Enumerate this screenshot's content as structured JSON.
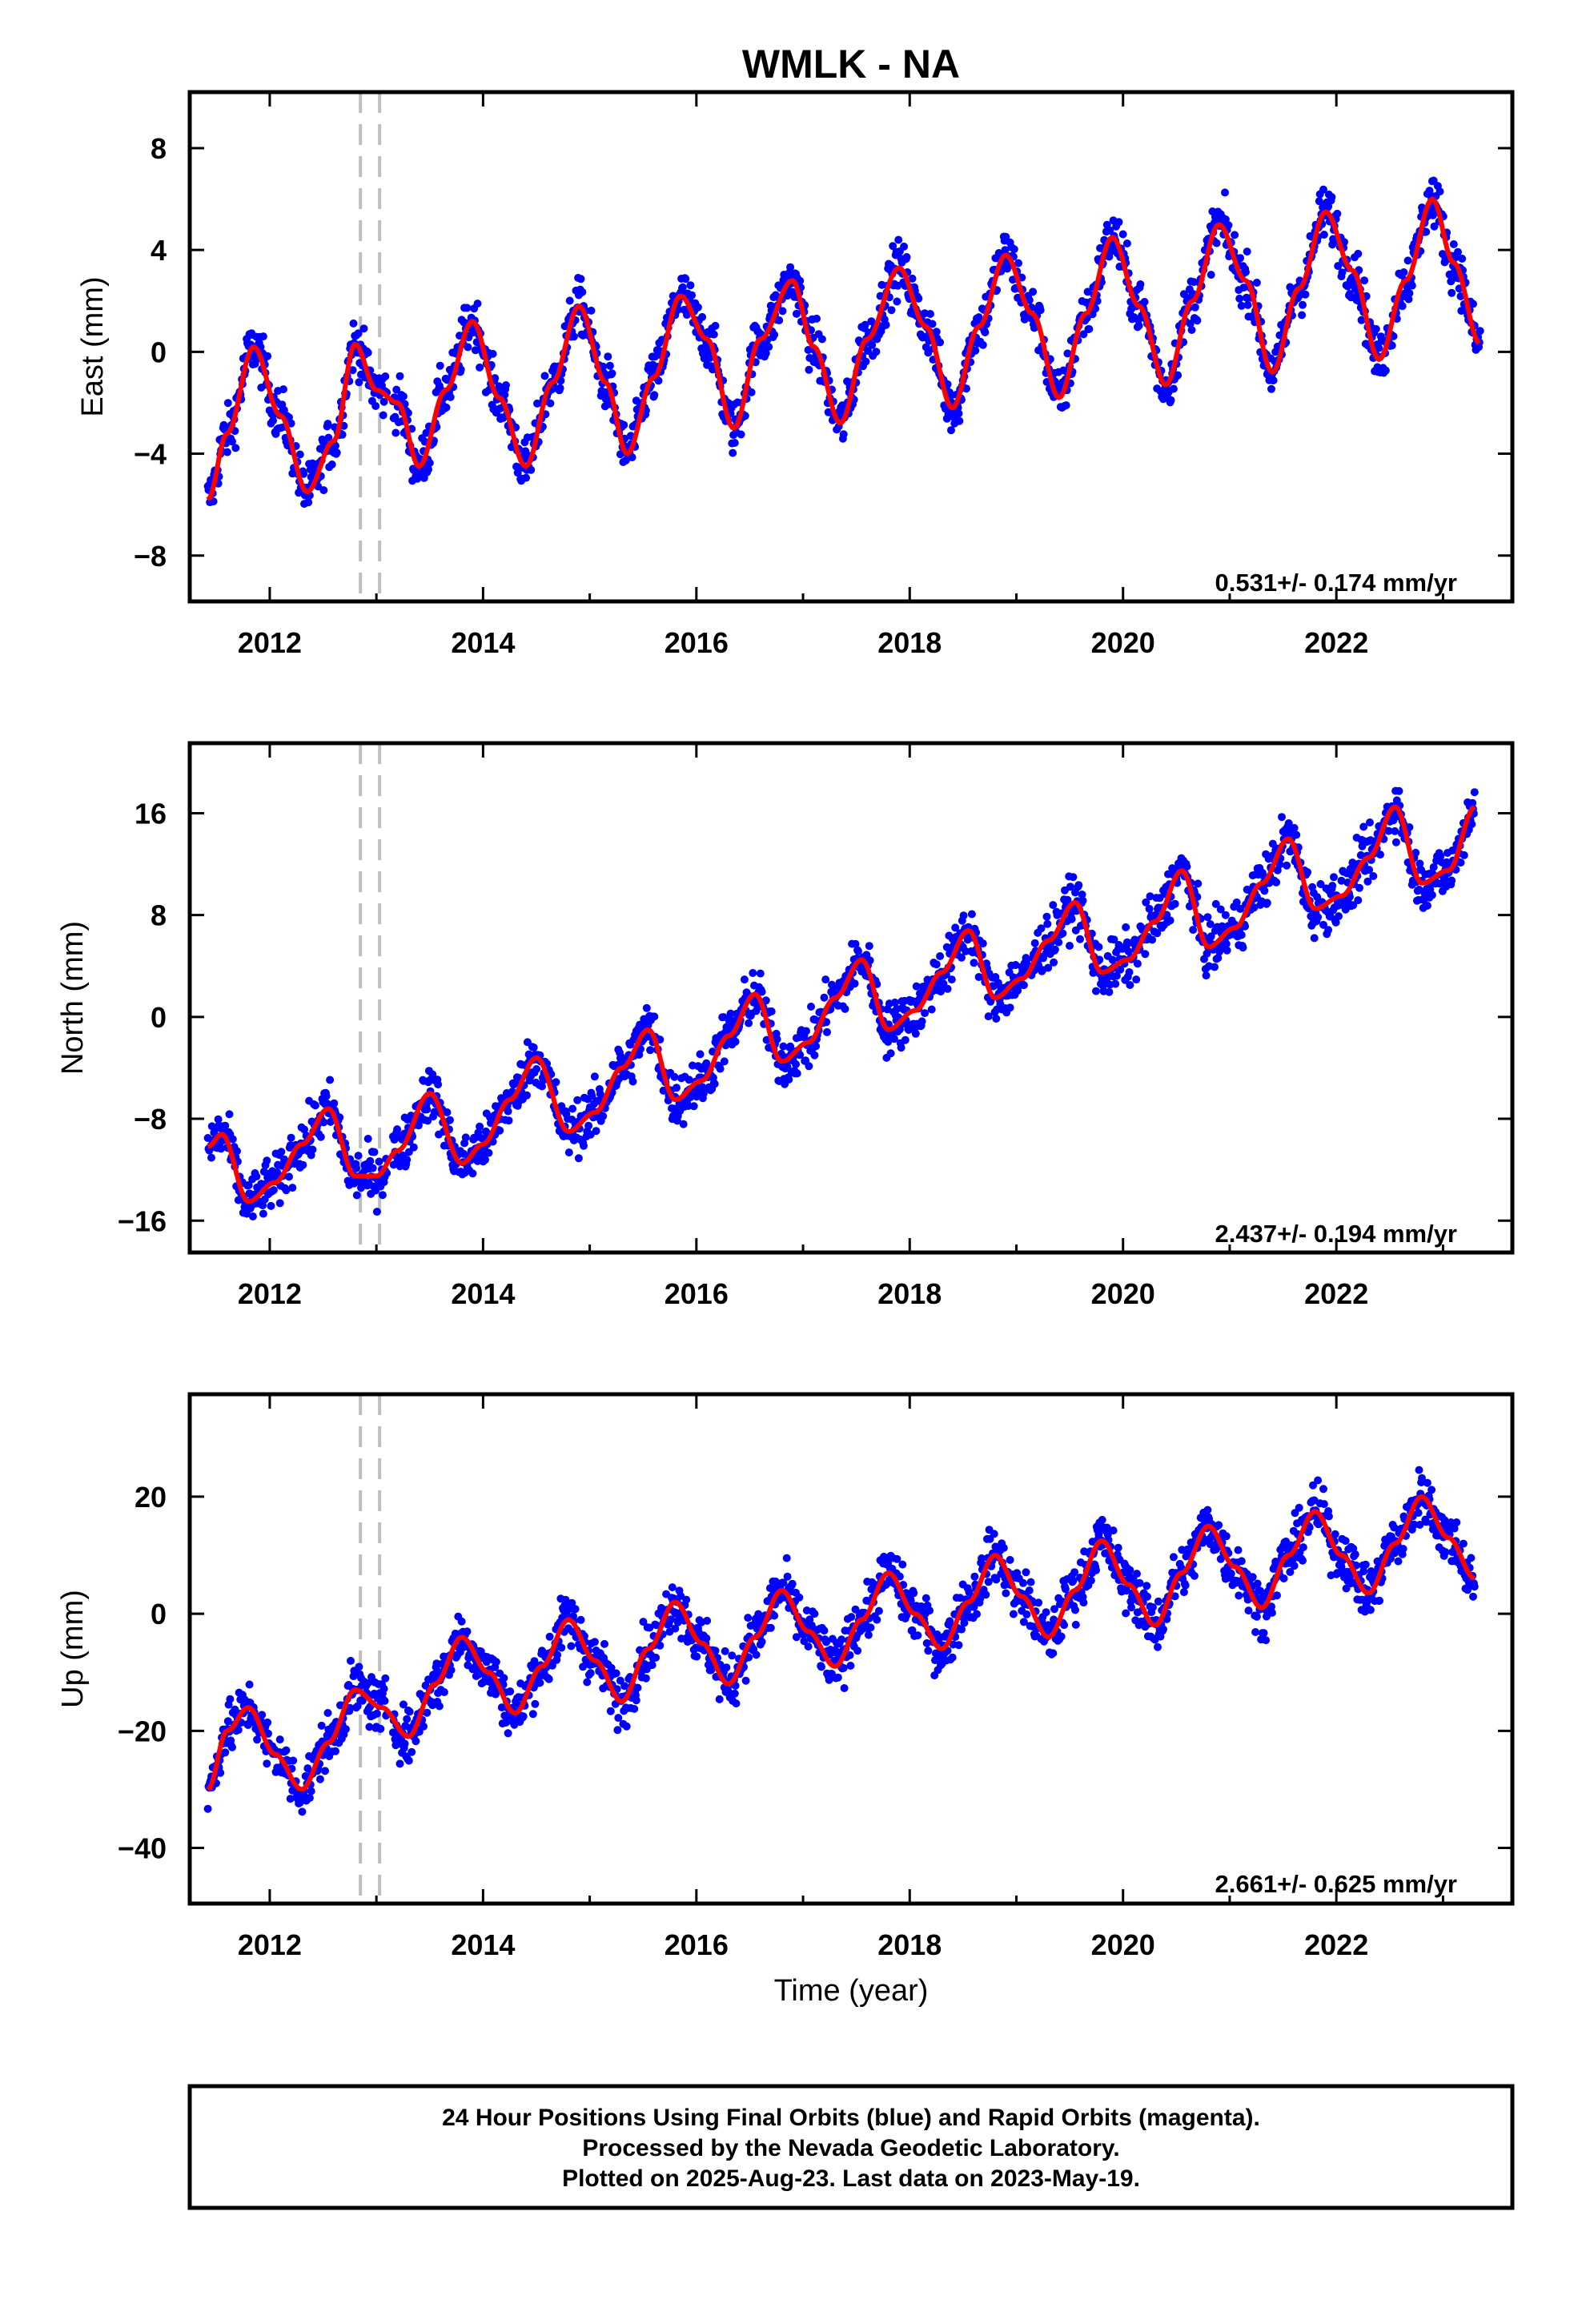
{
  "title": "WMLK - NA",
  "colors": {
    "data": "#0000ff",
    "model": "#ff0000",
    "breaks": "#bfbfbf",
    "frame": "#000000"
  },
  "xlabel": "Time (year)",
  "xticks": [
    2012,
    2014,
    2016,
    2018,
    2020,
    2022
  ],
  "breaks": [
    2012.85,
    2013.03
  ],
  "chart_data": [
    {
      "type": "scatter",
      "component": "east",
      "ylabel": "East (mm)",
      "xlim": [
        2011.25,
        2023.65
      ],
      "ylim": [
        -9.8,
        10.2
      ],
      "yticks": [
        -8,
        -4,
        0,
        4,
        8
      ],
      "rate": "0.531+/- 0.174 mm/yr",
      "series": [
        {
          "role": "daily positions",
          "x": [
            2011.42,
            2011.6,
            2011.85,
            2012.1,
            2012.35,
            2012.6,
            2012.8,
            2013.0,
            2013.2,
            2013.4,
            2013.65,
            2013.9,
            2014.15,
            2014.4,
            2014.65,
            2014.9,
            2015.15,
            2015.35,
            2015.6,
            2015.85,
            2016.1,
            2016.35,
            2016.6,
            2016.9,
            2017.1,
            2017.35,
            2017.6,
            2017.9,
            2018.15,
            2018.4,
            2018.65,
            2018.9,
            2019.15,
            2019.4,
            2019.65,
            2019.9,
            2020.15,
            2020.4,
            2020.65,
            2020.9,
            2021.15,
            2021.4,
            2021.65,
            2021.9,
            2022.15,
            2022.4,
            2022.65,
            2022.9,
            2023.1,
            2023.35
          ],
          "y": [
            -5.8,
            -3.2,
            0.2,
            -2.5,
            -5.5,
            -3.5,
            0.3,
            -1.5,
            -2.0,
            -4.5,
            -1.5,
            1.2,
            -1.8,
            -4.5,
            -1.2,
            1.8,
            -1.2,
            -4.0,
            -1.0,
            2.2,
            0.5,
            -3.0,
            0.5,
            2.8,
            0.2,
            -2.8,
            0.5,
            3.3,
            1.0,
            -2.2,
            1.0,
            3.8,
            1.5,
            -1.8,
            1.5,
            4.5,
            1.8,
            -1.3,
            2.0,
            5.0,
            2.8,
            -0.8,
            2.5,
            5.5,
            3.2,
            -0.3,
            2.8,
            6.0,
            3.5,
            0.3
          ]
        },
        {
          "role": "seasonal + trend model",
          "samples_per_year": 48
        }
      ]
    },
    {
      "type": "scatter",
      "component": "north",
      "ylabel": "North (mm)",
      "xlim": [
        2011.25,
        2023.65
      ],
      "ylim": [
        -18.5,
        21.5
      ],
      "yticks": [
        -16,
        -8,
        0,
        8,
        16
      ],
      "rate": "2.437+/- 0.194 mm/yr",
      "series": [
        {
          "role": "daily positions",
          "x": [
            2011.42,
            2011.55,
            2011.8,
            2012.05,
            2012.3,
            2012.55,
            2012.8,
            2013.0,
            2013.2,
            2013.5,
            2013.8,
            2014.0,
            2014.25,
            2014.5,
            2014.8,
            2015.05,
            2015.3,
            2015.55,
            2015.8,
            2016.05,
            2016.3,
            2016.55,
            2016.8,
            2017.05,
            2017.3,
            2017.55,
            2017.8,
            2018.05,
            2018.3,
            2018.55,
            2018.8,
            2019.05,
            2019.3,
            2019.55,
            2019.8,
            2020.05,
            2020.3,
            2020.55,
            2020.8,
            2021.05,
            2021.3,
            2021.55,
            2021.8,
            2022.05,
            2022.3,
            2022.55,
            2022.8,
            2023.05,
            2023.3
          ],
          "y": [
            -10.2,
            -9.2,
            -14.5,
            -13.0,
            -10.0,
            -7.2,
            -12.5,
            -12.5,
            -10.5,
            -6.0,
            -11.5,
            -10.0,
            -6.5,
            -3.2,
            -9.0,
            -7.5,
            -4.0,
            -1.0,
            -6.5,
            -5.0,
            -1.5,
            1.8,
            -3.5,
            -2.0,
            1.5,
            4.5,
            -1.0,
            0.5,
            3.5,
            6.8,
            1.5,
            3.0,
            6.0,
            9.0,
            3.5,
            4.5,
            7.5,
            11.5,
            5.5,
            7.0,
            10.5,
            14.0,
            8.5,
            9.5,
            12.5,
            16.5,
            10.5,
            11.5,
            16.5
          ]
        },
        {
          "role": "seasonal + trend model",
          "samples_per_year": 48
        }
      ]
    },
    {
      "type": "scatter",
      "component": "up",
      "ylabel": "Up (mm)",
      "xlim": [
        2011.25,
        2023.65
      ],
      "ylim": [
        -49.5,
        37.5
      ],
      "yticks": [
        -40,
        -20,
        0,
        20
      ],
      "rate": "2.661+/- 0.625 mm/yr",
      "series": [
        {
          "role": "daily positions",
          "x": [
            2011.42,
            2011.6,
            2011.8,
            2012.05,
            2012.3,
            2012.55,
            2012.8,
            2013.05,
            2013.3,
            2013.55,
            2013.8,
            2014.05,
            2014.3,
            2014.55,
            2014.8,
            2015.05,
            2015.3,
            2015.55,
            2015.8,
            2016.05,
            2016.3,
            2016.55,
            2016.8,
            2017.05,
            2017.3,
            2017.55,
            2017.8,
            2018.05,
            2018.3,
            2018.55,
            2018.8,
            2019.05,
            2019.3,
            2019.55,
            2019.8,
            2020.05,
            2020.3,
            2020.55,
            2020.8,
            2021.05,
            2021.3,
            2021.55,
            2021.8,
            2022.05,
            2022.3,
            2022.55,
            2022.8,
            2023.05,
            2023.3
          ],
          "y": [
            -30.0,
            -20.0,
            -16.0,
            -24.0,
            -30.0,
            -22.0,
            -13.0,
            -16.0,
            -21.0,
            -12.0,
            -4.0,
            -10.0,
            -17.0,
            -9.0,
            -1.0,
            -8.0,
            -15.0,
            -6.0,
            2.0,
            -5.0,
            -12.0,
            -4.0,
            4.0,
            -3.0,
            -9.0,
            -1.0,
            7.0,
            0.0,
            -6.0,
            2.0,
            10.0,
            3.0,
            -4.0,
            4.0,
            12.5,
            5.0,
            -2.0,
            7.0,
            15.0,
            8.0,
            1.0,
            10.0,
            17.5,
            10.0,
            3.5,
            12.0,
            20.0,
            13.0,
            6.0
          ]
        },
        {
          "role": "seasonal + trend model",
          "samples_per_year": 48
        }
      ]
    }
  ],
  "footer": {
    "line1": "24 Hour Positions Using Final Orbits (blue) and Rapid Orbits (magenta).",
    "line2": "Processed by the Nevada Geodetic Laboratory.",
    "line3": "Plotted on 2025-Aug-23. Last data on 2023-May-19."
  }
}
